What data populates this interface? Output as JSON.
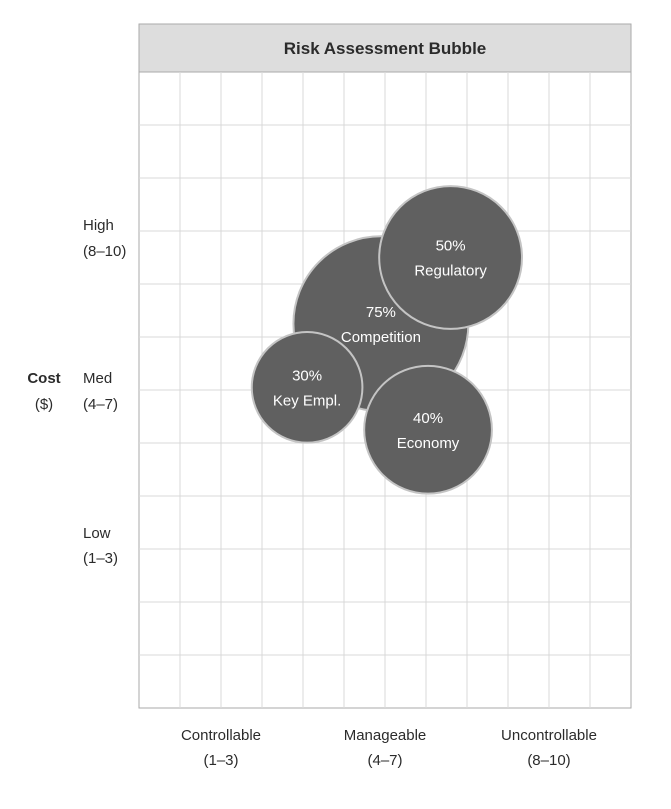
{
  "chart_data": {
    "type": "scatter",
    "title": "Risk Assessment Bubble",
    "ylabel": [
      "Cost",
      "($)"
    ],
    "xlim": [
      0,
      12
    ],
    "ylim": [
      0,
      12
    ],
    "grid": true,
    "x_groups": [
      {
        "name": "Controllable",
        "range": "(1–3)"
      },
      {
        "name": "Manageable",
        "range": "(4–7)"
      },
      {
        "name": "Uncontrollable",
        "range": "(8–10)"
      }
    ],
    "y_groups": [
      {
        "name": "High",
        "range": "(8–10)"
      },
      {
        "name": "Med",
        "range": "(4–7)"
      },
      {
        "name": "Low",
        "range": "(1–3)"
      }
    ],
    "colors": {
      "header_bg": "#dddddd",
      "bubble": "#606060",
      "bubble_stroke": "#c4c4c4",
      "grid": "#d9d9d9"
    },
    "points": [
      {
        "name": "Competition",
        "percent": "75%",
        "x": 5.9,
        "y": 7.25,
        "size": 75
      },
      {
        "name": "Regulatory",
        "percent": "50%",
        "x": 7.6,
        "y": 8.5,
        "size": 50
      },
      {
        "name": "Key Empl.",
        "percent": "30%",
        "x": 4.1,
        "y": 6.05,
        "size": 30
      },
      {
        "name": "Economy",
        "percent": "40%",
        "x": 7.05,
        "y": 5.25,
        "size": 40
      }
    ]
  }
}
